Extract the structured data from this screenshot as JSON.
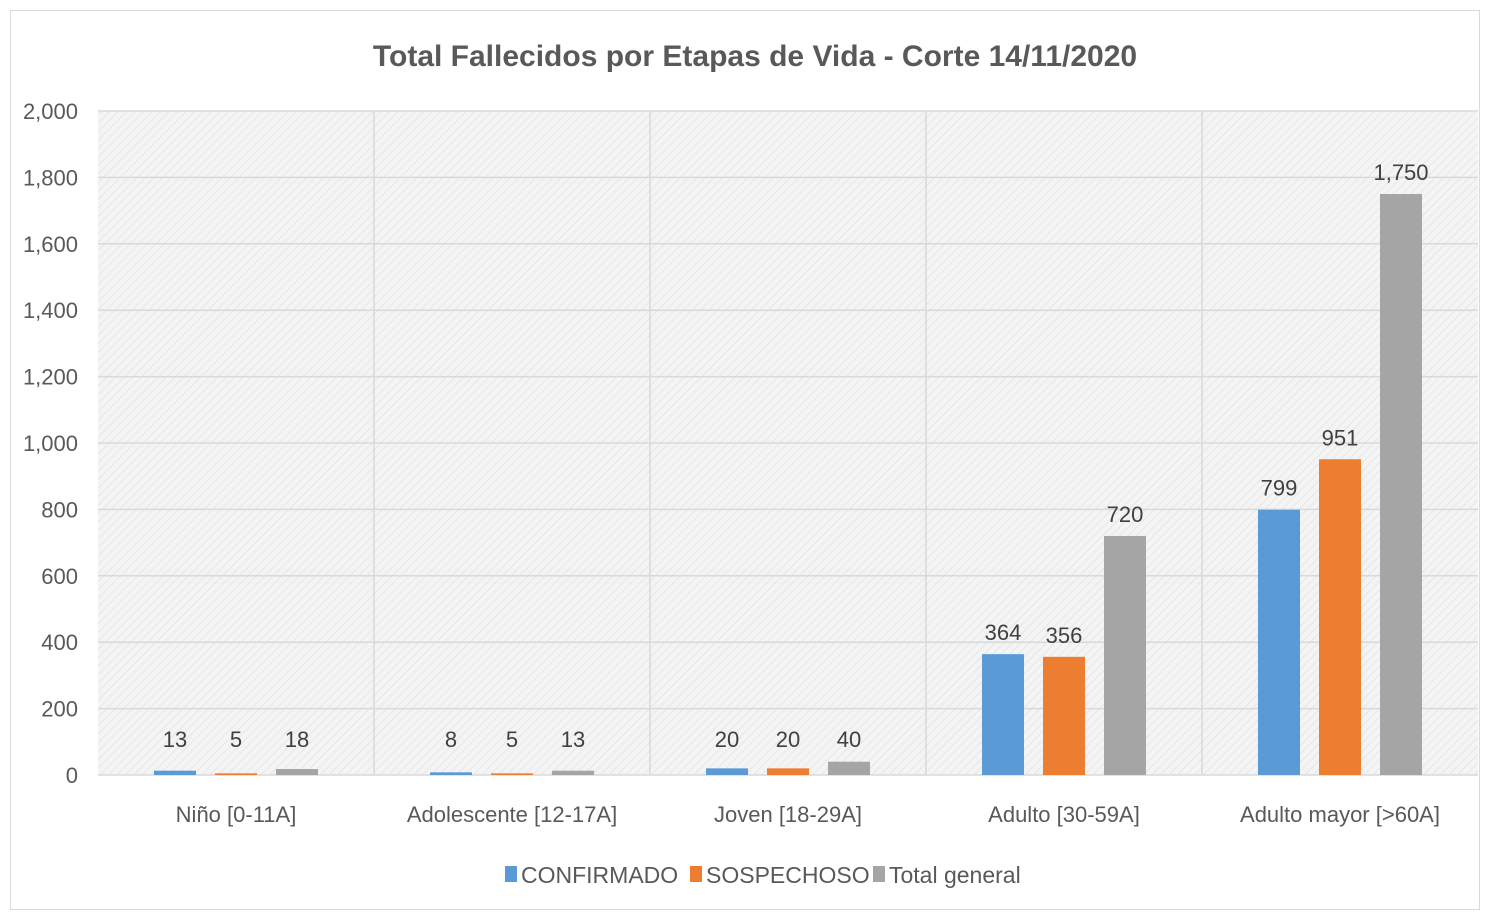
{
  "chart_data": {
    "type": "bar",
    "title": "Total Fallecidos por Etapas de Vida - Corte 14/11/2020",
    "categories": [
      "Niño [0-11A]",
      "Adolescente [12-17A]",
      "Joven [18-29A]",
      "Adulto [30-59A]",
      "Adulto mayor [>60A]"
    ],
    "series": [
      {
        "name": "CONFIRMADO",
        "color": "#5b9bd5",
        "values": [
          13,
          8,
          20,
          364,
          799
        ],
        "labels": [
          "13",
          "8",
          "20",
          "364",
          "799"
        ]
      },
      {
        "name": "SOSPECHOSO",
        "color": "#ed7d31",
        "values": [
          5,
          5,
          20,
          356,
          951
        ],
        "labels": [
          "5",
          "5",
          "20",
          "356",
          "951"
        ]
      },
      {
        "name": "Total general",
        "color": "#a5a5a5",
        "values": [
          18,
          13,
          40,
          720,
          1750
        ],
        "labels": [
          "18",
          "13",
          "40",
          "720",
          "1,750"
        ]
      }
    ],
    "yticks": [
      "0",
      "200",
      "400",
      "600",
      "800",
      "1,000",
      "1,200",
      "1,400",
      "1,600",
      "1,800",
      "2,000"
    ],
    "ylim": [
      0,
      2000
    ],
    "xlabel": "",
    "ylabel": "",
    "grid": true,
    "legend_position": "bottom"
  }
}
